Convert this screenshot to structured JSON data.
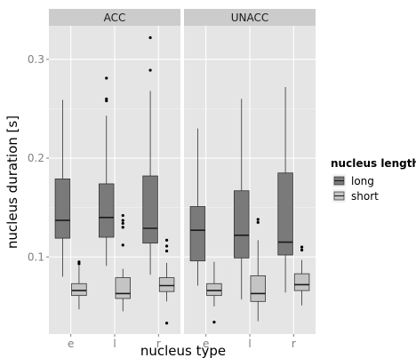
{
  "chart_data": {
    "type": "box",
    "facets": [
      "ACC",
      "UNACC"
    ],
    "categories": [
      "e",
      "l",
      "r"
    ],
    "xlabel": "nucleus type",
    "ylabel": "nucleus duration [s]",
    "ylim": [
      0.022,
      0.334
    ],
    "yticks": [
      0.1,
      0.2,
      0.3
    ],
    "grid": true,
    "legend": {
      "title": "nucleus length",
      "position": "right",
      "items": [
        {
          "label": "long",
          "color": "#7a7a7a"
        },
        {
          "label": "short",
          "color": "#c4c4c4"
        }
      ]
    },
    "series": [
      {
        "name": "long",
        "color": "#7a7a7a",
        "boxes": {
          "ACC": [
            {
              "category": "e",
              "min": 0.08,
              "q1": 0.119,
              "median": 0.137,
              "q3": 0.179,
              "max": 0.259,
              "outliers": []
            },
            {
              "category": "l",
              "min": 0.091,
              "q1": 0.12,
              "median": 0.14,
              "q3": 0.174,
              "max": 0.243,
              "outliers": [
                0.258,
                0.26,
                0.281
              ]
            },
            {
              "category": "r",
              "min": 0.082,
              "q1": 0.114,
              "median": 0.129,
              "q3": 0.182,
              "max": 0.268,
              "outliers": [
                0.289,
                0.322
              ]
            }
          ],
          "UNACC": [
            {
              "category": "e",
              "min": 0.071,
              "q1": 0.096,
              "median": 0.127,
              "q3": 0.151,
              "max": 0.23,
              "outliers": []
            },
            {
              "category": "l",
              "min": 0.057,
              "q1": 0.099,
              "median": 0.122,
              "q3": 0.167,
              "max": 0.26,
              "outliers": []
            },
            {
              "category": "r",
              "min": 0.064,
              "q1": 0.102,
              "median": 0.115,
              "q3": 0.185,
              "max": 0.272,
              "outliers": []
            }
          ]
        }
      },
      {
        "name": "short",
        "color": "#c4c4c4",
        "boxes": {
          "ACC": [
            {
              "category": "e",
              "min": 0.047,
              "q1": 0.061,
              "median": 0.066,
              "q3": 0.073,
              "max": 0.091,
              "outliers": [
                0.093,
                0.095
              ]
            },
            {
              "category": "l",
              "min": 0.045,
              "q1": 0.058,
              "median": 0.063,
              "q3": 0.079,
              "max": 0.088,
              "outliers": [
                0.112,
                0.13,
                0.134,
                0.137,
                0.142
              ]
            },
            {
              "category": "r",
              "min": 0.055,
              "q1": 0.065,
              "median": 0.071,
              "q3": 0.079,
              "max": 0.094,
              "outliers": [
                0.033,
                0.106,
                0.111,
                0.117
              ]
            }
          ],
          "UNACC": [
            {
              "category": "e",
              "min": 0.05,
              "q1": 0.061,
              "median": 0.066,
              "q3": 0.073,
              "max": 0.095,
              "outliers": [
                0.034
              ]
            },
            {
              "category": "l",
              "min": 0.035,
              "q1": 0.055,
              "median": 0.063,
              "q3": 0.081,
              "max": 0.117,
              "outliers": [
                0.135,
                0.138
              ]
            },
            {
              "category": "r",
              "min": 0.051,
              "q1": 0.066,
              "median": 0.072,
              "q3": 0.083,
              "max": 0.097,
              "outliers": [
                0.107,
                0.11
              ]
            }
          ]
        }
      }
    ]
  }
}
